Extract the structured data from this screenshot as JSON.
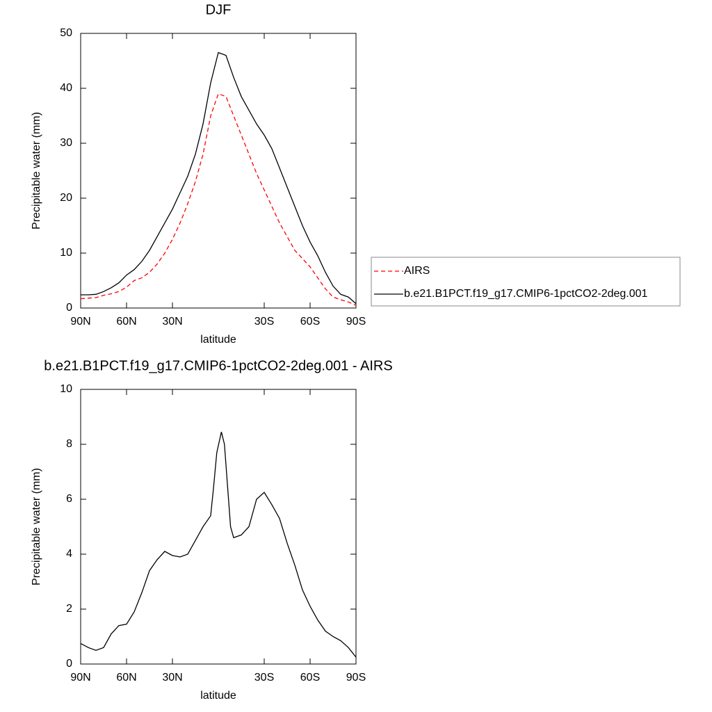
{
  "chart_data": [
    {
      "type": "line",
      "title": "DJF",
      "x_label": "latitude",
      "y_label": "Precipitable water (mm)",
      "x": [
        90,
        85,
        80,
        75,
        70,
        65,
        60,
        55,
        50,
        45,
        40,
        35,
        30,
        25,
        20,
        15,
        10,
        5,
        0,
        -5,
        -10,
        -15,
        -20,
        -25,
        -30,
        -35,
        -40,
        -45,
        -50,
        -55,
        -60,
        -65,
        -70,
        -75,
        -80,
        -85,
        -90
      ],
      "series": [
        {
          "name": "AIRS",
          "color": "#ff0000",
          "dashed": true,
          "values": [
            1.7,
            1.8,
            1.9,
            2.3,
            2.6,
            3.0,
            3.8,
            5.0,
            5.5,
            6.5,
            8.0,
            10.0,
            12.5,
            15.5,
            19.0,
            23.0,
            28.0,
            35.0,
            39.0,
            38.5,
            35.0,
            31.5,
            28.0,
            24.5,
            21.5,
            18.5,
            15.5,
            13.0,
            10.5,
            9.0,
            7.5,
            5.5,
            3.5,
            2.0,
            1.5,
            1.1,
            0.5
          ]
        },
        {
          "name": "b.e21.B1PCT.f19_g17.CMIP6-1pctCO2-2deg.001",
          "color": "#000000",
          "dashed": false,
          "values": [
            2.4,
            2.4,
            2.5,
            3.0,
            3.7,
            4.6,
            6.0,
            7.0,
            8.5,
            10.5,
            13.0,
            15.5,
            18.0,
            21.0,
            24.0,
            28.0,
            33.5,
            41.0,
            46.5,
            46.0,
            42.0,
            38.5,
            36.0,
            33.5,
            31.5,
            29.0,
            25.5,
            22.0,
            18.5,
            15.0,
            12.0,
            9.5,
            6.5,
            4.0,
            2.5,
            2.0,
            0.8
          ]
        }
      ],
      "xlim": [
        90,
        -90
      ],
      "ylim": [
        0,
        50
      ],
      "xticks": [
        {
          "value": 90,
          "label": "90N"
        },
        {
          "value": 60,
          "label": "60N"
        },
        {
          "value": 30,
          "label": "30N"
        },
        {
          "value": -30,
          "label": "30S"
        },
        {
          "value": -60,
          "label": "60S"
        },
        {
          "value": -90,
          "label": "90S"
        }
      ],
      "yticks": [
        0,
        10,
        20,
        30,
        40,
        50
      ],
      "legend": "right"
    },
    {
      "type": "line",
      "title": "b.e21.B1PCT.f19_g17.CMIP6-1pctCO2-2deg.001 - AIRS",
      "x_label": "latitude",
      "y_label": "Precipitable water (mm)",
      "x": [
        90,
        85,
        80,
        75,
        70,
        65,
        60,
        55,
        50,
        45,
        40,
        35,
        30,
        25,
        20,
        15,
        10,
        5,
        3,
        1,
        -2,
        -4,
        -6,
        -8,
        -10,
        -15,
        -20,
        -25,
        -30,
        -35,
        -40,
        -45,
        -50,
        -55,
        -60,
        -65,
        -70,
        -75,
        -80,
        -85,
        -90
      ],
      "series": [
        {
          "color": "#000000",
          "dashed": false,
          "values": [
            0.75,
            0.6,
            0.5,
            0.6,
            1.1,
            1.4,
            1.45,
            1.9,
            2.6,
            3.4,
            3.8,
            4.1,
            3.95,
            3.9,
            4.0,
            4.5,
            5.0,
            5.4,
            6.5,
            7.7,
            8.45,
            8.0,
            6.5,
            5.0,
            4.6,
            4.7,
            5.0,
            6.0,
            6.25,
            5.8,
            5.3,
            4.4,
            3.6,
            2.7,
            2.1,
            1.6,
            1.2,
            1.0,
            0.85,
            0.6,
            0.25
          ]
        }
      ],
      "xlim": [
        90,
        -90
      ],
      "ylim": [
        0,
        10
      ],
      "xticks": [
        {
          "value": 90,
          "label": "90N"
        },
        {
          "value": 60,
          "label": "60N"
        },
        {
          "value": 30,
          "label": "30N"
        },
        {
          "value": -30,
          "label": "30S"
        },
        {
          "value": -60,
          "label": "60S"
        },
        {
          "value": -90,
          "label": "90S"
        }
      ],
      "yticks": [
        0,
        2,
        4,
        6,
        8,
        10
      ]
    }
  ]
}
